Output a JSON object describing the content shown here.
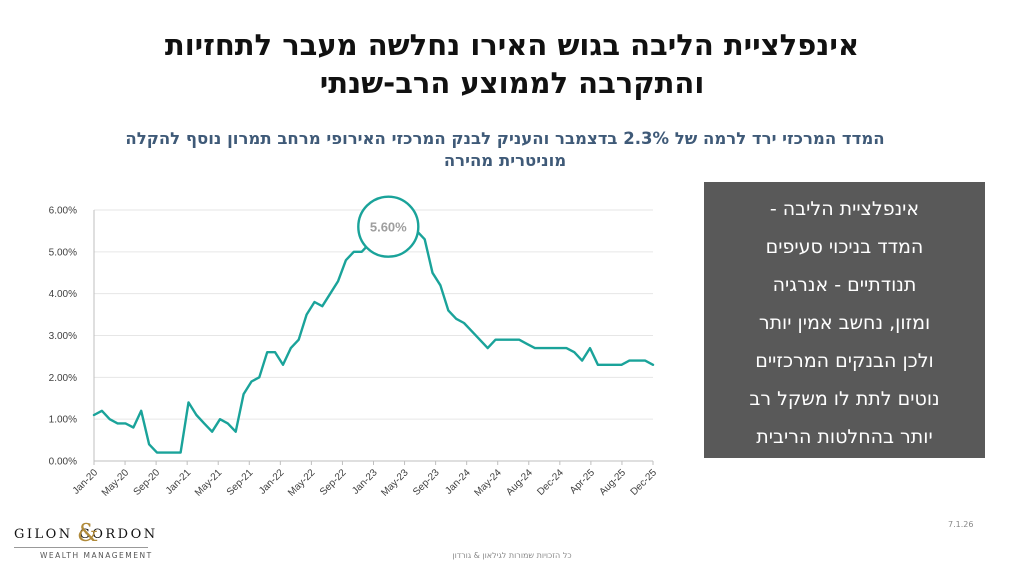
{
  "slide": {
    "title_line1": "אינפלציית הליבה בגוש האירו נחלשה מעבר לתחזיות",
    "title_line2": "והתקרבה לממוצע הרב-שנתי",
    "subtitle_line1": "המדד המרכזי ירד לרמה של 2.3% בדצמבר והעניק לבנק המרכזי האירופי מרחב תמרון נוסף להקלה",
    "subtitle_line2": "מוניטרית מהירה",
    "sidebar_lines": [
      "אינפלציית הליבה -",
      "המדד בניכוי סעיפים",
      "תנודתיים - אנרגיה",
      "ומזון, נחשב אמין יותר",
      "ולכן הבנקים המרכזיים",
      "נוטים לתת לו משקל רב",
      "יותר בהחלטות הריבית"
    ],
    "footer": "כל הזכויות שמורות לגילאון & גורדון",
    "page_no": "7.1.26",
    "logo_text": "GILON    GORDON",
    "logo_amp": "&",
    "logo_sub": "WEALTH MANAGEMENT"
  },
  "colors": {
    "line": "#1aa39a",
    "grid": "#e6e6e6",
    "axis": "#bfbfbf",
    "sidebar_bg": "#595959",
    "subtitle": "#3f5a78"
  },
  "chart_data": {
    "type": "line",
    "y_ticks": [
      "0.00%",
      "1.00%",
      "2.00%",
      "3.00%",
      "4.00%",
      "5.00%",
      "6.00%"
    ],
    "ylim": [
      0,
      6
    ],
    "x_tick_labels": [
      "Jan-20",
      "May-20",
      "Sep-20",
      "Jan-21",
      "May-21",
      "Sep-21",
      "Jan-22",
      "May-22",
      "Sep-22",
      "Jan-23",
      "May-23",
      "Sep-23",
      "Jan-24",
      "May-24",
      "Aug-24",
      "Dec-24",
      "Apr-25",
      "Aug-25",
      "Dec-25"
    ],
    "grid": "horizontal",
    "legend": "none",
    "annotation": {
      "label": "5.60%",
      "x": "Mar-23",
      "y": 5.6
    },
    "series": [
      {
        "values": [
          1.1,
          1.2,
          1.0,
          0.9,
          0.9,
          0.8,
          1.2,
          0.4,
          0.2,
          0.2,
          0.2,
          0.2,
          1.4,
          1.1,
          0.9,
          0.7,
          1.0,
          0.9,
          0.7,
          1.6,
          1.9,
          2.0,
          2.6,
          2.6,
          2.3,
          2.7,
          2.9,
          3.5,
          3.8,
          3.7,
          4.0,
          4.3,
          4.8,
          5.0,
          5.0,
          5.2,
          5.3,
          5.6,
          5.5,
          5.3,
          5.3,
          5.5,
          5.3,
          4.5,
          4.2,
          3.6,
          3.4,
          3.3,
          3.1,
          2.9,
          2.7,
          2.9,
          2.9,
          2.9,
          2.9,
          2.8,
          2.7,
          2.7,
          2.7,
          2.7,
          2.7,
          2.6,
          2.4,
          2.7,
          2.3,
          2.3,
          2.3,
          2.3,
          2.4,
          2.4,
          2.4,
          2.3
        ]
      }
    ]
  }
}
